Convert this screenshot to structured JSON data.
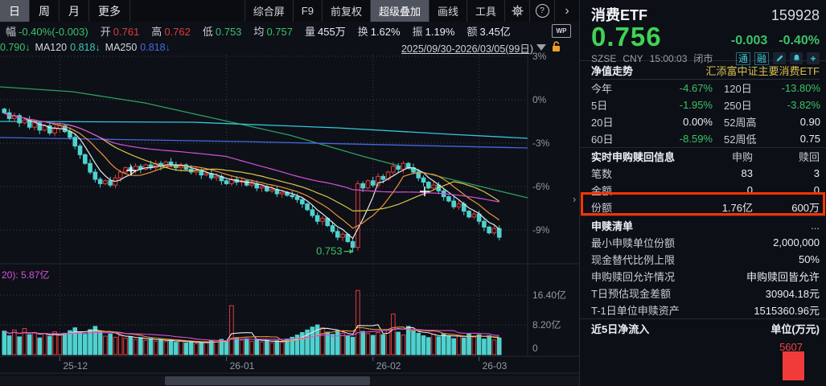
{
  "period_tabs": [
    {
      "label": "日"
    },
    {
      "label": "周"
    },
    {
      "label": "月"
    },
    {
      "label": "更多"
    }
  ],
  "top_buttons": [
    {
      "label": "综合屏"
    },
    {
      "label": "F9"
    },
    {
      "label": "前复权"
    },
    {
      "label": "超级叠加"
    },
    {
      "label": "画线"
    },
    {
      "label": "工具"
    }
  ],
  "top_icons": {
    "help": "?",
    "more": "›",
    "wp": "WP",
    "collapse": "›"
  },
  "stats": [
    {
      "label": "幅",
      "value": "-0.40%(-0.003)"
    },
    {
      "label": "开",
      "value": "0.761"
    },
    {
      "label": "高",
      "value": "0.762"
    },
    {
      "label": "低",
      "value": "0.753"
    },
    {
      "label": "均",
      "value": "0.757"
    },
    {
      "label": "量",
      "value": "455万"
    },
    {
      "label": "换",
      "value": "1.62%"
    },
    {
      "label": "振",
      "value": "1.19%"
    },
    {
      "label": "额",
      "value": "3.45亿"
    }
  ],
  "ma_labels": [
    {
      "label": "",
      "value": "0.790↓"
    },
    {
      "label": "MA120",
      "value": "0.818↓"
    },
    {
      "label": "MA250",
      "value": "0.818↓"
    }
  ],
  "date_range": "2025/09/30-2026/03/05(99日)",
  "chart_data": {
    "type": "candlestick+volume",
    "price_axis_labels": [
      "3%",
      "0%",
      "-3%",
      "-6%",
      "-9%"
    ],
    "price_axis_pcts": [
      3,
      0,
      -3,
      -6,
      -9
    ],
    "volume_axis_labels": [
      "16.40亿",
      "8.20亿",
      "0"
    ],
    "volume_axis_values": [
      16.4,
      8.2,
      0
    ],
    "x_labels": [
      {
        "label": "25-12",
        "i": 11
      },
      {
        "label": "26-01",
        "i": 44
      },
      {
        "label": "26-02",
        "i": 73
      },
      {
        "label": "26-03",
        "i": 94
      }
    ],
    "low_annotation": {
      "text": "0.753",
      "bar": 69
    },
    "volume_pane_label": "20): 5.87亿",
    "closes_pct": [
      -0.9,
      -1.3,
      -1.1,
      -1.6,
      -1.4,
      -1.9,
      -1.6,
      -2.1,
      -1.8,
      -2.3,
      -2.0,
      -1.8,
      -2.2,
      -2.6,
      -3.2,
      -3.8,
      -4.4,
      -5.0,
      -5.5,
      -5.8,
      -5.6,
      -5.9,
      -5.4,
      -5.0,
      -4.7,
      -4.9,
      -4.6,
      -4.8,
      -4.5,
      -4.7,
      -4.4,
      -4.6,
      -4.3,
      -4.5,
      -4.7,
      -4.5,
      -4.8,
      -5.0,
      -4.9,
      -5.2,
      -5.1,
      -5.4,
      -5.3,
      -5.6,
      -5.8,
      -5.5,
      -5.7,
      -5.6,
      -5.9,
      -5.8,
      -6.1,
      -6.0,
      -6.3,
      -6.2,
      -6.5,
      -6.4,
      -6.6,
      -6.7,
      -6.9,
      -7.2,
      -7.6,
      -8.0,
      -8.4,
      -8.2,
      -8.7,
      -9.1,
      -9.5,
      -9.3,
      -9.8,
      -10.2,
      -5.8,
      -6.1,
      -5.6,
      -5.9,
      -5.3,
      -5.5,
      -5.0,
      -4.6,
      -4.8,
      -4.4,
      -4.7,
      -5.0,
      -5.4,
      -5.7,
      -6.1,
      -5.9,
      -6.3,
      -6.7,
      -7.0,
      -7.4,
      -7.2,
      -7.7,
      -8.1,
      -7.9,
      -8.4,
      -8.8,
      -9.2,
      -8.9,
      -9.5
    ],
    "volumes_yi": [
      6.5,
      5.2,
      6.8,
      4.9,
      7.2,
      5.5,
      6.1,
      4.6,
      5.8,
      5.0,
      6.3,
      5.4,
      5.9,
      6.6,
      7.4,
      6.2,
      5.6,
      6.9,
      7.8,
      6.4,
      5.1,
      5.7,
      4.8,
      5.3,
      4.5,
      4.9,
      4.2,
      4.6,
      3.9,
      4.4,
      3.7,
      4.1,
      3.6,
      4.0,
      3.4,
      3.8,
      3.2,
      3.6,
      3.0,
      3.5,
      3.3,
      3.9,
      3.5,
      4.2,
      3.8,
      13.5,
      4.6,
      4.0,
      4.4,
      3.7,
      4.1,
      3.5,
      3.9,
      3.3,
      3.8,
      3.4,
      4.3,
      4.8,
      5.4,
      6.1,
      6.8,
      7.6,
      8.2,
      7.4,
      6.2,
      5.6,
      6.6,
      5.9,
      5.2,
      4.8,
      17.7,
      6.4,
      5.8,
      5.3,
      6.1,
      5.5,
      6.8,
      11.2,
      6.2,
      5.4,
      7.8,
      6.6,
      5.9,
      5.2,
      4.7,
      5.6,
      4.9,
      5.8,
      5.1,
      4.4,
      5.3,
      4.6,
      5.7,
      4.9,
      5.5,
      4.3,
      5.2,
      4.0,
      4.6
    ],
    "overlay_lines": [
      {
        "name": "ma250-green-line",
        "color": "#2d9e5e",
        "points": [
          [
            0,
            108
          ],
          [
            90,
            114
          ],
          [
            180,
            128
          ],
          [
            270,
            148
          ],
          [
            360,
            168
          ],
          [
            450,
            194
          ],
          [
            540,
            218
          ],
          [
            656,
            246
          ]
        ]
      },
      {
        "name": "cyan-overlay-line",
        "color": "#35c7d8",
        "points": [
          [
            0,
            151
          ],
          [
            240,
            152
          ],
          [
            420,
            159
          ],
          [
            560,
            167
          ],
          [
            656,
            172
          ]
        ]
      },
      {
        "name": "blue-overlay-line",
        "color": "#4468e0",
        "points": [
          [
            0,
            171
          ],
          [
            300,
            176
          ],
          [
            656,
            184
          ]
        ]
      }
    ],
    "markers": [
      [
        163,
        212
      ],
      [
        528,
        238
      ]
    ],
    "legend_colors": {
      "ma5": "#e8e8e8",
      "ma10": "#f09238",
      "ma20": "#d8c84a",
      "ma60": "#d950d9",
      "up": "#e23b3b",
      "down": "#4fd2cf"
    }
  },
  "quote": {
    "name": "消费ETF",
    "code": "159928",
    "price": "0.756",
    "change": "-0.003",
    "change_pct": "-0.40%",
    "exchange": "SZSE",
    "currency": "CNY",
    "time": "15:00:03",
    "status": "闭市",
    "badge1": "通",
    "badge2": "融"
  },
  "nav_section": {
    "title": "净值走势",
    "fund_name": "汇添富中证主要消费ETF",
    "rows": [
      [
        {
          "l": "今年",
          "v": "-4.67%"
        },
        {
          "l": "120日",
          "v": "-13.80%"
        }
      ],
      [
        {
          "l": "5日",
          "v": "-1.95%"
        },
        {
          "l": "250日",
          "v": "-3.82%"
        }
      ],
      [
        {
          "l": "20日",
          "v": "0.00%"
        },
        {
          "l": "52周高",
          "v": "0.90"
        }
      ],
      [
        {
          "l": "60日",
          "v": "-8.59%"
        },
        {
          "l": "52周低",
          "v": "0.75"
        }
      ]
    ]
  },
  "realtime_section": {
    "title": "实时申购赎回信息",
    "col1": "申购",
    "col2": "赎回",
    "rows": [
      {
        "l": "笔数",
        "v1": "83",
        "v2": "3"
      },
      {
        "l": "金额",
        "v1": "0",
        "v2": "0"
      },
      {
        "l": "份额",
        "v1": "1.76亿",
        "v2": "600万"
      }
    ]
  },
  "list_section": {
    "title": "申赎清单",
    "more": "...",
    "rows": [
      {
        "l": "最小申赎单位份额",
        "v": "2,000,000"
      },
      {
        "l": "现金替代比例上限",
        "v": "50%"
      },
      {
        "l": "申购赎回允许情况",
        "v": "申购赎回皆允许"
      },
      {
        "l": "T日预估现金差额",
        "v": "30904.18元"
      },
      {
        "l": "T-1日单位申赎资产",
        "v": "1515360.96元"
      }
    ]
  },
  "flow_section": {
    "title": "近5日净流入",
    "unit": "单位(万元)",
    "bar_value": "5607"
  }
}
